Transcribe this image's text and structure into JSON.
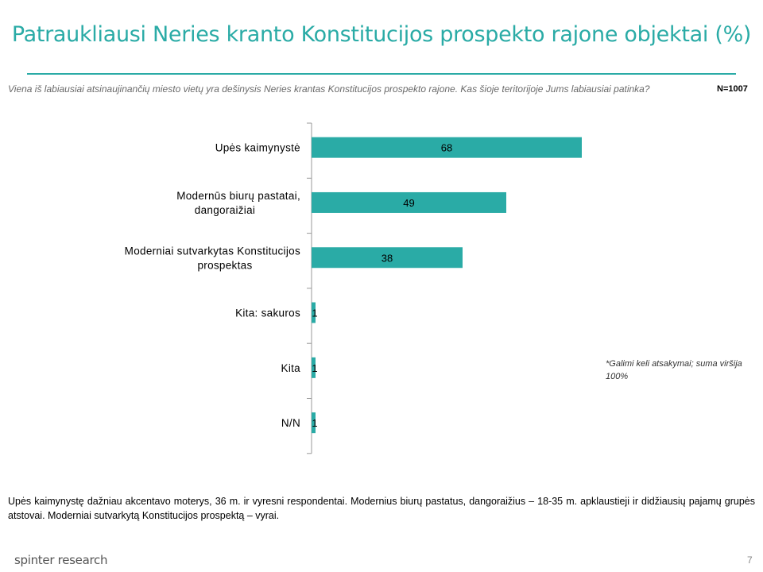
{
  "title": "Patraukliausi Neries kranto Konstitucijos prospekto rajone objektai (%)",
  "question": "Viena iš labiausiai atsinaujinančių miesto vietų yra dešinysis Neries krantas Konstitucijos prospekto rajone. Kas šioje teritorijoje Jums labiausiai patinka?",
  "sample_size": "N=1007",
  "note": "*Galimi keli atsakymai; suma viršija 100%",
  "footnote": "Upės kaimynystę dažniau akcentavo moterys, 36 m. ir vyresni respondentai. Modernius biurų pastatus, dangoraižius – 18-35 m. apklaustieji ir didžiausių pajamų grupės atstovai. Moderniai sutvarkytą Konstitucijos prospektą – vyrai.",
  "brand": "spinter research",
  "page_number": "7",
  "colors": {
    "accent": "#2aaba6",
    "bar": "#2aaba6",
    "axis": "#999999"
  },
  "chart_data": {
    "type": "bar",
    "orientation": "horizontal",
    "categories": [
      [
        "Upės kaimynystė"
      ],
      [
        "Modernūs biurų pastatai,",
        "dangoraižiai"
      ],
      [
        "Moderniai sutvarkytas Konstitucijos",
        "prospektas"
      ],
      [
        "Kita: sakuros"
      ],
      [
        "Kita"
      ],
      [
        "N/N"
      ]
    ],
    "values": [
      68,
      49,
      38,
      1,
      1,
      1
    ],
    "data_labels": [
      "68",
      "49",
      "38",
      "1",
      "1",
      "1"
    ],
    "xlim": [
      0,
      100
    ],
    "grid": false,
    "legend": "none",
    "title": "",
    "xlabel": "",
    "ylabel": ""
  }
}
